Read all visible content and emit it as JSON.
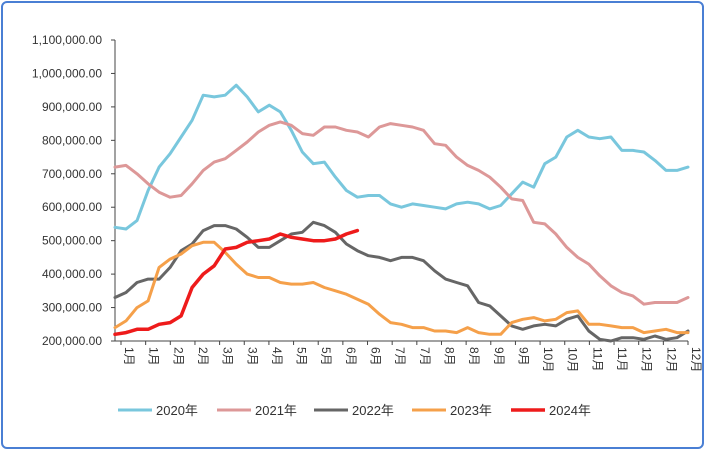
{
  "chart_data": {
    "type": "line",
    "title": "",
    "xlabel": "",
    "ylabel": "",
    "ylim": [
      200000,
      1100000
    ],
    "y_ticks": [
      200000,
      300000,
      400000,
      500000,
      600000,
      700000,
      800000,
      900000,
      1000000,
      1100000
    ],
    "y_tick_labels": [
      "200,000.00",
      "300,000.00",
      "400,000.00",
      "500,000.00",
      "600,000.00",
      "700,000.00",
      "800,000.00",
      "900,000.00",
      "1,000,000.00",
      "1,100,000.00"
    ],
    "x_tick_labels": [
      "1月",
      "1月",
      "2月",
      "2月",
      "3月",
      "3月",
      "4月",
      "5月",
      "5月",
      "6月",
      "6月",
      "7月",
      "7月",
      "8月",
      "8月",
      "9月",
      "9月",
      "10月",
      "10月",
      "11月",
      "11月",
      "12月",
      "12月",
      "12月"
    ],
    "legend_position": "bottom",
    "grid": false,
    "series": [
      {
        "name": "2020年",
        "color": "#79c7dd",
        "values": [
          540000,
          535000,
          560000,
          650000,
          720000,
          760000,
          810000,
          860000,
          935000,
          930000,
          935000,
          965000,
          930000,
          885000,
          905000,
          885000,
          830000,
          765000,
          730000,
          735000,
          690000,
          650000,
          630000,
          635000,
          635000,
          610000,
          600000,
          610000,
          605000,
          600000,
          595000,
          610000,
          615000,
          610000,
          595000,
          605000,
          640000,
          675000,
          660000,
          730000,
          750000,
          810000,
          830000,
          810000,
          805000,
          810000,
          770000,
          770000,
          765000,
          740000,
          710000,
          710000,
          720000
        ]
      },
      {
        "name": "2021年",
        "color": "#dd9898",
        "values": [
          720000,
          725000,
          700000,
          670000,
          645000,
          630000,
          635000,
          670000,
          710000,
          735000,
          745000,
          770000,
          795000,
          825000,
          845000,
          855000,
          845000,
          820000,
          815000,
          840000,
          840000,
          830000,
          825000,
          810000,
          840000,
          850000,
          845000,
          840000,
          830000,
          790000,
          785000,
          750000,
          725000,
          710000,
          690000,
          660000,
          625000,
          620000,
          555000,
          550000,
          520000,
          480000,
          450000,
          430000,
          395000,
          365000,
          345000,
          335000,
          310000,
          315000,
          315000,
          315000,
          330000
        ]
      },
      {
        "name": "2022年",
        "color": "#666666",
        "values": [
          330000,
          345000,
          375000,
          385000,
          385000,
          420000,
          470000,
          490000,
          530000,
          545000,
          545000,
          535000,
          510000,
          480000,
          480000,
          500000,
          520000,
          525000,
          555000,
          545000,
          525000,
          490000,
          470000,
          455000,
          450000,
          440000,
          450000,
          450000,
          440000,
          410000,
          385000,
          375000,
          365000,
          315000,
          305000,
          275000,
          245000,
          235000,
          245000,
          250000,
          245000,
          265000,
          275000,
          230000,
          205000,
          200000,
          210000,
          210000,
          205000,
          215000,
          205000,
          210000,
          230000
        ]
      },
      {
        "name": "2023年",
        "color": "#f5a04a",
        "values": [
          240000,
          260000,
          300000,
          320000,
          420000,
          445000,
          460000,
          485000,
          495000,
          495000,
          465000,
          430000,
          400000,
          390000,
          390000,
          375000,
          370000,
          370000,
          375000,
          360000,
          350000,
          340000,
          325000,
          310000,
          280000,
          255000,
          250000,
          240000,
          240000,
          230000,
          230000,
          225000,
          240000,
          225000,
          220000,
          220000,
          255000,
          265000,
          270000,
          260000,
          265000,
          285000,
          290000,
          250000,
          250000,
          245000,
          240000,
          240000,
          225000,
          230000,
          235000,
          225000,
          225000
        ]
      },
      {
        "name": "2024年",
        "color": "#ee1b1b",
        "values": [
          220000,
          225000,
          235000,
          235000,
          250000,
          255000,
          275000,
          360000,
          400000,
          425000,
          475000,
          480000,
          495000,
          500000,
          505000,
          520000,
          510000,
          505000,
          500000,
          500000,
          505000,
          520000,
          530000
        ]
      }
    ]
  }
}
